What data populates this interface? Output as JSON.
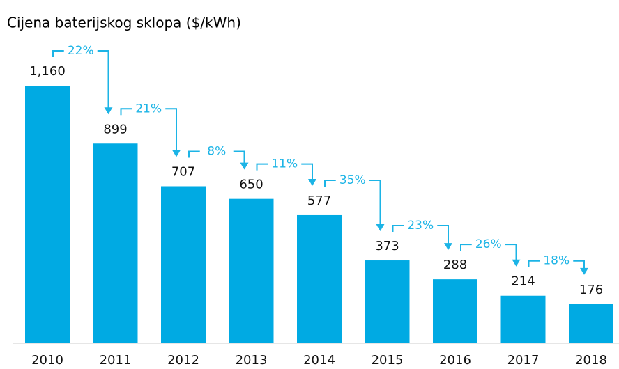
{
  "chart_data": {
    "type": "bar",
    "title": "Cijena baterijskog sklopa ($/kWh)",
    "categories": [
      "2010",
      "2011",
      "2012",
      "2013",
      "2014",
      "2015",
      "2016",
      "2017",
      "2018"
    ],
    "values": [
      1160,
      899,
      707,
      650,
      577,
      373,
      288,
      214,
      176
    ],
    "value_labels": [
      "1,160",
      "899",
      "707",
      "650",
      "577",
      "373",
      "288",
      "214",
      "176"
    ],
    "color": "#00aae3",
    "annotations": [
      "22%",
      "21%",
      "8%",
      "11%",
      "35%",
      "23%",
      "26%",
      "18%"
    ],
    "annotation_color": "#1cb4e6"
  }
}
